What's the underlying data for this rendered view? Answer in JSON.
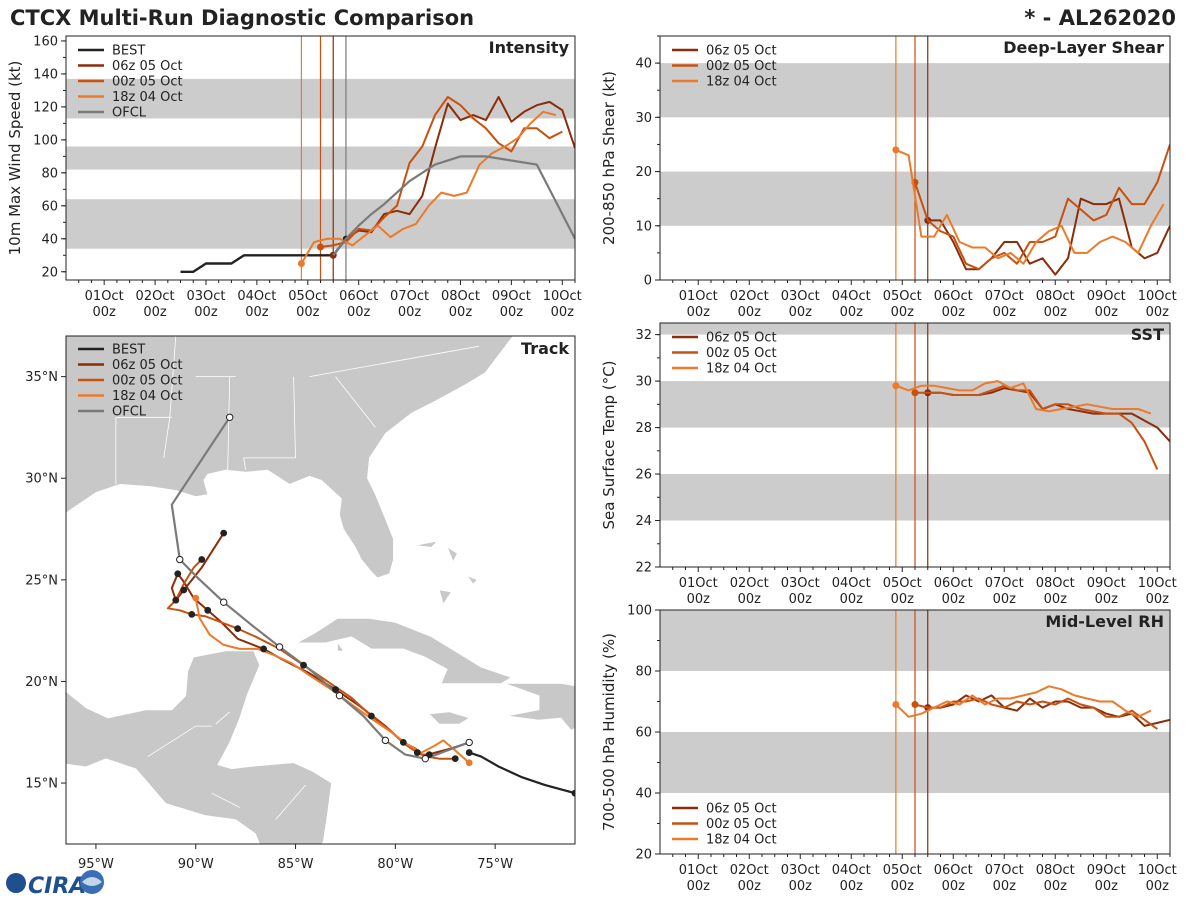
{
  "header": {
    "title": "CTCX Multi-Run Diagnostic Comparison",
    "storm_id": "* - AL262020"
  },
  "colors": {
    "best": "#222222",
    "run_06z": "#8b2c0a",
    "run_00z": "#c9500f",
    "run_18z": "#ec7a2a",
    "ofcl": "#7a7a7a",
    "band": "#cccccc",
    "land": "#c8c8c8",
    "ocean": "#ffffff"
  },
  "time_axis": {
    "tick_labels": [
      "01Oct",
      "02Oct",
      "03Oct",
      "04Oct",
      "05Oct",
      "06Oct",
      "07Oct",
      "08Oct",
      "09Oct",
      "10Oct"
    ],
    "tick_sub": "00z",
    "range_hours": [
      -18,
      222
    ],
    "run_lines_hours": [
      93,
      102,
      108
    ]
  },
  "chart_data": [
    {
      "id": "intensity",
      "type": "line",
      "title": "Intensity",
      "ylabel": "10m Max Wind Speed (kt)",
      "ylim": [
        15,
        163
      ],
      "yticks": [
        20,
        40,
        60,
        80,
        100,
        120,
        140,
        160
      ],
      "bands": [
        [
          34,
          64
        ],
        [
          82,
          96
        ],
        [
          113,
          137
        ]
      ],
      "vlines": [
        93,
        102,
        108,
        114
      ],
      "legend": [
        "BEST",
        "06z 05 Oct",
        "00z 05 Oct",
        "18z 04 Oct",
        "OFCL"
      ],
      "series": [
        {
          "name": "BEST",
          "color": "best",
          "x": [
            36,
            42,
            48,
            54,
            60,
            66,
            72,
            78,
            84,
            90,
            96,
            102,
            108,
            114
          ],
          "y": [
            20,
            20,
            25,
            25,
            25,
            30,
            30,
            30,
            30,
            30,
            30,
            30,
            30,
            40
          ]
        },
        {
          "name": "06z 05 Oct",
          "color": "run_06z",
          "x": [
            108,
            114,
            120,
            126,
            132,
            138,
            144,
            150,
            156,
            162,
            168,
            174,
            180,
            186,
            192,
            198,
            204,
            210,
            216,
            222
          ],
          "y": [
            30,
            40,
            45,
            44,
            55,
            57,
            55,
            66,
            95,
            122,
            112,
            115,
            112,
            126,
            111,
            117,
            121,
            123,
            118,
            95
          ]
        },
        {
          "name": "00z 05 Oct",
          "color": "run_00z",
          "x": [
            102,
            108,
            114,
            120,
            126,
            132,
            138,
            144,
            150,
            156,
            162,
            168,
            174,
            180,
            186,
            192,
            198,
            204,
            210,
            216
          ],
          "y": [
            35,
            36,
            38,
            46,
            45,
            53,
            60,
            86,
            96,
            115,
            126,
            121,
            113,
            107,
            98,
            93,
            107,
            107,
            101,
            105
          ]
        },
        {
          "name": "18z 04 Oct",
          "color": "run_18z",
          "x": [
            93,
            99,
            105,
            111,
            117,
            123,
            129,
            135,
            141,
            147,
            153,
            159,
            165,
            171,
            177,
            183,
            189,
            195,
            201,
            207,
            213
          ],
          "y": [
            25,
            38,
            40,
            40,
            36,
            42,
            48,
            41,
            46,
            49,
            60,
            68,
            66,
            68,
            85,
            92,
            96,
            101,
            110,
            117,
            115
          ]
        },
        {
          "name": "OFCL",
          "color": "ofcl",
          "x": [
            108,
            114,
            120,
            126,
            132,
            144,
            156,
            168,
            180,
            204,
            222
          ],
          "y": [
            30,
            40,
            48,
            55,
            61,
            75,
            85,
            90,
            90,
            85,
            40
          ]
        }
      ]
    },
    {
      "id": "shear",
      "type": "line",
      "title": "Deep-Layer Shear",
      "ylabel": "200-850 hPa Shear (kt)",
      "ylim": [
        0,
        45
      ],
      "yticks": [
        0,
        10,
        20,
        30,
        40
      ],
      "bands": [
        [
          10,
          20
        ],
        [
          30,
          40
        ]
      ],
      "vlines": [
        93,
        102,
        108
      ],
      "legend": [
        "06z 05 Oct",
        "00z 05 Oct",
        "18z 04 Oct"
      ],
      "series": [
        {
          "name": "06z 05 Oct",
          "color": "run_06z",
          "x": [
            108,
            114,
            120,
            126,
            132,
            138,
            144,
            150,
            156,
            162,
            168,
            174,
            180,
            186,
            192,
            198,
            204,
            210,
            216,
            222
          ],
          "y": [
            11,
            11,
            7,
            2,
            2,
            4,
            7,
            7,
            3,
            4,
            1,
            4,
            15,
            14,
            14,
            15,
            6,
            4,
            5,
            10
          ]
        },
        {
          "name": "00z 05 Oct",
          "color": "run_00z",
          "x": [
            102,
            108,
            114,
            120,
            126,
            132,
            138,
            144,
            150,
            156,
            162,
            168,
            174,
            180,
            186,
            192,
            198,
            204,
            210,
            216,
            222
          ],
          "y": [
            18,
            11,
            9,
            8,
            3,
            2,
            4,
            5,
            3,
            7,
            7,
            8,
            15,
            13,
            11,
            12,
            17,
            14,
            14,
            18,
            25
          ]
        },
        {
          "name": "18z 04 Oct",
          "color": "run_18z",
          "x": [
            93,
            99,
            105,
            111,
            117,
            123,
            129,
            135,
            141,
            147,
            153,
            159,
            165,
            171,
            177,
            183,
            189,
            195,
            201,
            207,
            213,
            219
          ],
          "y": [
            24,
            23,
            8,
            8,
            12,
            7,
            6,
            6,
            4,
            5,
            3,
            7,
            9,
            10,
            5,
            5,
            7,
            8,
            7,
            5,
            10,
            14
          ]
        }
      ]
    },
    {
      "id": "sst",
      "type": "line",
      "title": "SST",
      "ylabel": "Sea Surface Temp (°C)",
      "ylim": [
        22,
        32.5
      ],
      "yticks": [
        22,
        24,
        26,
        28,
        30,
        32
      ],
      "bands": [
        [
          24,
          26
        ],
        [
          28,
          30
        ],
        [
          32,
          34
        ]
      ],
      "vlines": [
        93,
        102,
        108
      ],
      "legend": [
        "06z 05 Oct",
        "00z 05 Oct",
        "18z 04 Oct"
      ],
      "series": [
        {
          "name": "06z 05 Oct",
          "color": "run_06z",
          "x": [
            108,
            114,
            120,
            126,
            132,
            138,
            144,
            150,
            156,
            162,
            168,
            174,
            180,
            186,
            192,
            198,
            204,
            210,
            216,
            222
          ],
          "y": [
            29.5,
            29.5,
            29.4,
            29.4,
            29.4,
            29.5,
            29.7,
            29.6,
            29.5,
            28.8,
            29.0,
            28.8,
            28.7,
            28.6,
            28.6,
            28.6,
            28.6,
            28.3,
            28.0,
            27.4
          ]
        },
        {
          "name": "00z 05 Oct",
          "color": "run_00z",
          "x": [
            102,
            108,
            114,
            120,
            126,
            132,
            138,
            144,
            150,
            156,
            162,
            168,
            174,
            180,
            186,
            192,
            198,
            204,
            210,
            216
          ],
          "y": [
            29.5,
            29.5,
            29.5,
            29.4,
            29.4,
            29.4,
            29.6,
            29.8,
            29.6,
            29.6,
            28.8,
            29.0,
            29.0,
            28.8,
            28.7,
            28.6,
            28.6,
            28.2,
            27.4,
            26.2
          ]
        },
        {
          "name": "18z 04 Oct",
          "color": "run_18z",
          "x": [
            93,
            99,
            105,
            111,
            117,
            123,
            129,
            135,
            141,
            147,
            153,
            159,
            165,
            171,
            177,
            183,
            189,
            195,
            201,
            207,
            213
          ],
          "y": [
            29.8,
            29.6,
            29.8,
            29.8,
            29.7,
            29.6,
            29.6,
            29.9,
            30.0,
            29.7,
            29.9,
            28.8,
            28.7,
            28.8,
            28.9,
            29.0,
            28.9,
            28.8,
            28.8,
            28.8,
            28.6
          ]
        }
      ]
    },
    {
      "id": "rh",
      "type": "line",
      "title": "Mid-Level RH",
      "ylabel": "700-500 hPa Humidity (%)",
      "ylim": [
        20,
        100
      ],
      "yticks": [
        20,
        40,
        60,
        80,
        100
      ],
      "bands": [
        [
          40,
          60
        ],
        [
          80,
          100
        ]
      ],
      "vlines": [
        93,
        102,
        108
      ],
      "legend": [
        "06z 05 Oct",
        "00z 05 Oct",
        "18z 04 Oct"
      ],
      "series": [
        {
          "name": "06z 05 Oct",
          "color": "run_06z",
          "x": [
            108,
            114,
            120,
            126,
            132,
            138,
            144,
            150,
            156,
            162,
            168,
            174,
            180,
            186,
            192,
            198,
            204,
            210,
            216,
            222
          ],
          "y": [
            68,
            68,
            69,
            72,
            70,
            72,
            68,
            67,
            71,
            68,
            70,
            70,
            68,
            68,
            66,
            65,
            66,
            62,
            63,
            64
          ]
        },
        {
          "name": "00z 05 Oct",
          "color": "run_00z",
          "x": [
            102,
            108,
            114,
            120,
            126,
            132,
            138,
            144,
            150,
            156,
            162,
            168,
            174,
            180,
            186,
            192,
            198,
            204,
            210,
            216
          ],
          "y": [
            69,
            68,
            68,
            70,
            70,
            71,
            69,
            68,
            70,
            69,
            70,
            69,
            71,
            69,
            68,
            65,
            65,
            67,
            64,
            61
          ]
        },
        {
          "name": "18z 04 Oct",
          "color": "run_18z",
          "x": [
            93,
            99,
            105,
            111,
            117,
            123,
            129,
            135,
            141,
            147,
            153,
            159,
            165,
            171,
            177,
            183,
            189,
            195,
            201,
            207,
            213
          ],
          "y": [
            69,
            65,
            66,
            68,
            70,
            69,
            72,
            69,
            71,
            71,
            72,
            73,
            75,
            74,
            72,
            71,
            70,
            70,
            67,
            65,
            67
          ]
        }
      ]
    },
    {
      "id": "track",
      "type": "scatter",
      "title": "Track",
      "xlim": [
        -96.5,
        -71
      ],
      "ylim": [
        12,
        37
      ],
      "lon_ticks": [
        -95,
        -90,
        -85,
        -80,
        -75
      ],
      "lon_labels": [
        "95°W",
        "90°W",
        "85°W",
        "80°W",
        "75°W"
      ],
      "lat_ticks": [
        15,
        20,
        25,
        30,
        35
      ],
      "lat_labels": [
        "15°N",
        "20°N",
        "25°N",
        "30°N",
        "35°N"
      ],
      "legend": [
        "BEST",
        "06z 05 Oct",
        "00z 05 Oct",
        "18z 04 Oct",
        "OFCL"
      ],
      "series": [
        {
          "name": "BEST",
          "color": "best",
          "lon": [
            -71,
            -72.5,
            -73.7,
            -74.8,
            -75.7,
            -76.3
          ],
          "lat": [
            14.5,
            14.9,
            15.3,
            15.8,
            16.3,
            16.5
          ],
          "markers": "end"
        },
        {
          "name": "06z 05 Oct",
          "color": "run_06z",
          "lon": [
            -76.3,
            -77.2,
            -78.0,
            -78.3,
            -78.7,
            -79.0,
            -79.6,
            -80.5,
            -81.8,
            -83.0,
            -84.3,
            -85.7,
            -86.6,
            -87.9,
            -88.7,
            -89.4,
            -90.1,
            -90.6,
            -90.9,
            -91.2,
            -91.0,
            -90.6,
            -89.7,
            -88.6
          ],
          "lat": [
            17.0,
            16.7,
            16.5,
            16.4,
            16.4,
            16.7,
            17.0,
            17.8,
            18.8,
            19.6,
            20.4,
            21.1,
            21.6,
            22.1,
            22.9,
            23.5,
            24.1,
            24.9,
            25.3,
            24.6,
            24.0,
            24.5,
            25.6,
            27.3
          ],
          "markers": "dots"
        },
        {
          "name": "00z 05 Oct",
          "color": "run_00z",
          "lon": [
            -77.0,
            -77.8,
            -78.4,
            -78.9,
            -79.5,
            -80.3,
            -81.2,
            -82.2,
            -83.4,
            -84.6,
            -85.8,
            -87.0,
            -87.9,
            -88.7,
            -89.5,
            -90.2,
            -90.8,
            -91.4,
            -91.0,
            -90.6,
            -90.1,
            -89.7
          ],
          "lat": [
            16.2,
            16.2,
            16.3,
            16.5,
            16.9,
            17.6,
            18.3,
            19.2,
            20.0,
            20.8,
            21.6,
            22.2,
            22.6,
            22.9,
            23.2,
            23.3,
            23.5,
            23.6,
            24.0,
            24.8,
            25.6,
            26.0
          ],
          "markers": "dots"
        },
        {
          "name": "18z 04 Oct",
          "color": "run_18z",
          "lon": [
            -76.3,
            -77.0,
            -77.6,
            -78.1,
            -78.7,
            -79.4,
            -80.2,
            -81.1,
            -82.1,
            -83.2,
            -84.3,
            -85.2,
            -86.1,
            -86.9,
            -87.8,
            -88.6,
            -89.3,
            -89.8,
            -90.0
          ],
          "lat": [
            16.0,
            16.6,
            17.1,
            16.8,
            16.5,
            16.9,
            17.5,
            18.1,
            18.8,
            19.6,
            20.3,
            20.9,
            21.3,
            21.6,
            21.6,
            21.8,
            22.3,
            23.1,
            24.1
          ],
          "markers": "end"
        },
        {
          "name": "OFCL",
          "color": "ofcl",
          "lon": [
            -76.3,
            -77.4,
            -78.5,
            -79.5,
            -80.5,
            -81.6,
            -82.8,
            -84.3,
            -85.8,
            -87.1,
            -88.6,
            -89.9,
            -90.8,
            -91.2,
            -88.3
          ],
          "lat": [
            17.0,
            16.6,
            16.2,
            16.4,
            17.1,
            18.3,
            19.3,
            20.6,
            21.7,
            22.7,
            23.9,
            25.1,
            26.0,
            28.7,
            33.0
          ],
          "markers": "open"
        }
      ]
    }
  ]
}
